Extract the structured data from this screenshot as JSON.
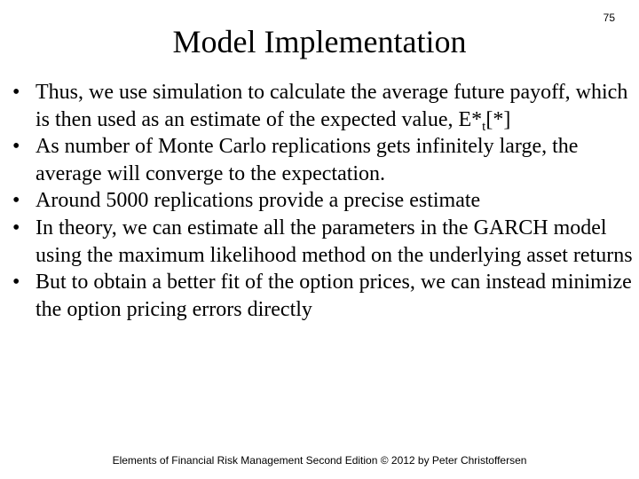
{
  "slide": {
    "page_number": "75",
    "title": "Model Implementation",
    "bullet_glyph": "•",
    "bullets": [
      {
        "text": "Thus, we use simulation to calculate the average future payoff, which is then used as an estimate of the expected value, E*",
        "subscript": "t",
        "suffix": "[*]"
      },
      {
        "text": "As number of Monte Carlo replications gets infinitely large, the average will converge to the expectation."
      },
      {
        "text": "Around 5000 replications provide a precise estimate"
      },
      {
        "text": "In theory, we can estimate all the parameters in the GARCH model using the maximum likelihood method on the underlying asset returns"
      },
      {
        "text": "But to obtain a better fit of the option prices, we can instead minimize the option pricing errors directly"
      }
    ],
    "footer": "Elements of Financial Risk Management Second Edition © 2012  by Peter Christoffersen"
  }
}
